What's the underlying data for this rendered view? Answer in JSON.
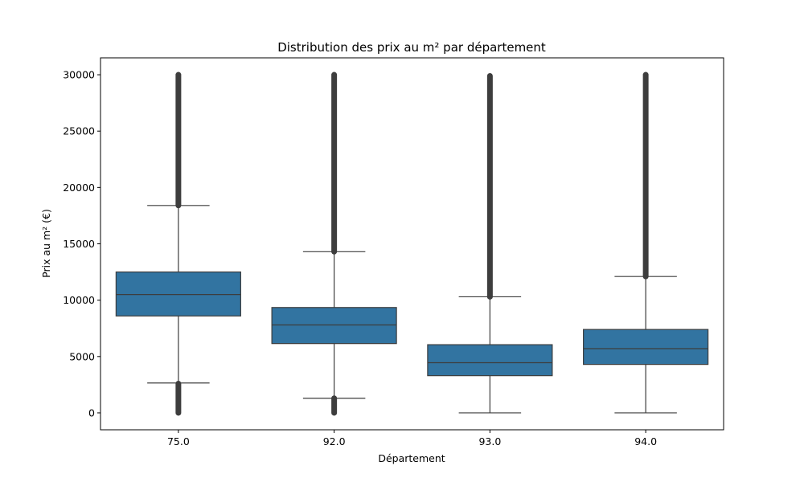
{
  "chart_data": {
    "type": "box",
    "title": "Distribution des prix au m² par département",
    "xlabel": "Département",
    "ylabel": "Prix au m² (€)",
    "categories": [
      "75.0",
      "92.0",
      "93.0",
      "94.0"
    ],
    "ylim": [
      -1500,
      31500
    ],
    "yticks": [
      0,
      5000,
      10000,
      15000,
      20000,
      25000,
      30000
    ],
    "ytick_labels": [
      "0",
      "5000",
      "10000",
      "15000",
      "20000",
      "25000",
      "30000"
    ],
    "grid": false,
    "legend": "none",
    "box_color": "#3274a1",
    "edge_color": "#3d3d3d",
    "boxes": [
      {
        "category": "75.0",
        "whisker_low": 2650,
        "q1": 8600,
        "median": 10500,
        "q3": 12500,
        "whisker_high": 18400,
        "outliers": {
          "low": [
            0,
            2600
          ],
          "high": [
            18400,
            30000
          ]
        }
      },
      {
        "category": "92.0",
        "whisker_low": 1300,
        "q1": 6150,
        "median": 7800,
        "q3": 9350,
        "whisker_high": 14300,
        "outliers": {
          "low": [
            0,
            1300
          ],
          "high": [
            14300,
            30000
          ]
        }
      },
      {
        "category": "93.0",
        "whisker_low": 0,
        "q1": 3300,
        "median": 4450,
        "q3": 6050,
        "whisker_high": 10300,
        "outliers": {
          "low": null,
          "high": [
            10300,
            29900
          ]
        }
      },
      {
        "category": "94.0",
        "whisker_low": 0,
        "q1": 4300,
        "median": 5700,
        "q3": 7400,
        "whisker_high": 12100,
        "outliers": {
          "low": null,
          "high": [
            12100,
            30000
          ]
        }
      }
    ]
  }
}
